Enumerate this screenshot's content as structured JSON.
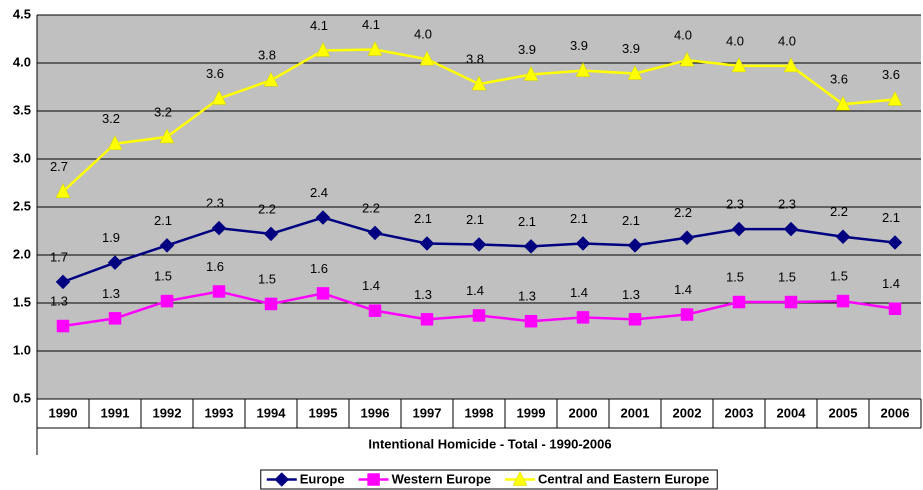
{
  "chart_data": {
    "type": "line",
    "x_label": "Intentional Homicide - Total - 1990-2006",
    "categories": [
      "1990",
      "1991",
      "1992",
      "1993",
      "1994",
      "1995",
      "1996",
      "1997",
      "1998",
      "1999",
      "2000",
      "2001",
      "2002",
      "2003",
      "2004",
      "2005",
      "2006"
    ],
    "ylim": [
      0.5,
      4.5
    ],
    "yticks": [
      0.5,
      {
        "value": 1,
        "label": "1.0"
      },
      1.5,
      {
        "value": 2,
        "label": "2.0"
      },
      2.5,
      {
        "value": 3,
        "label": "3.0"
      },
      3.5,
      {
        "value": 4,
        "label": "4.0"
      },
      4.5
    ],
    "grid": true,
    "background": "#c0c0c0",
    "legend": "bottom",
    "series": [
      {
        "name": "Europe",
        "color": "#000080",
        "marker": "diamond",
        "values": [
          1.72,
          1.92,
          2.1,
          2.28,
          2.22,
          2.39,
          2.23,
          2.12,
          2.11,
          2.09,
          2.12,
          2.1,
          2.18,
          2.27,
          2.27,
          2.19,
          2.13
        ],
        "value_labels": [
          "1.7",
          "1.9",
          "2.1",
          "2.3",
          "2.2",
          "2.4",
          "2.2",
          "2.1",
          "2.1",
          "2.1",
          "2.1",
          "2.1",
          "2.2",
          "2.3",
          "2.3",
          "2.2",
          "2.1"
        ]
      },
      {
        "name": "Western Europe",
        "color": "#ff00ff",
        "marker": "square",
        "values": [
          1.26,
          1.34,
          1.52,
          1.62,
          1.49,
          1.6,
          1.42,
          1.33,
          1.37,
          1.31,
          1.35,
          1.33,
          1.38,
          1.51,
          1.51,
          1.52,
          1.44
        ],
        "value_labels": [
          "1.3",
          "1.3",
          "1.5",
          "1.6",
          "1.5",
          "1.6",
          "1.4",
          "1.3",
          "1.4",
          "1.3",
          "1.4",
          "1.3",
          "1.4",
          "1.5",
          "1.5",
          "1.5",
          "1.4"
        ]
      },
      {
        "name": "Central and Eastern Europe",
        "color": "#ffff00",
        "marker": "triangle",
        "values": [
          2.66,
          3.16,
          3.23,
          3.63,
          3.82,
          4.13,
          4.14,
          4.04,
          3.78,
          3.88,
          3.92,
          3.89,
          4.03,
          3.97,
          3.97,
          3.57,
          3.62
        ],
        "value_labels": [
          "2.7",
          "3.2",
          "3.2",
          "3.6",
          "3.8",
          "4.1",
          "4.1",
          "4.0",
          "3.8",
          "3.9",
          "3.9",
          "3.9",
          "4.0",
          "4.0",
          "4.0",
          "3.6",
          "3.6"
        ]
      }
    ]
  }
}
